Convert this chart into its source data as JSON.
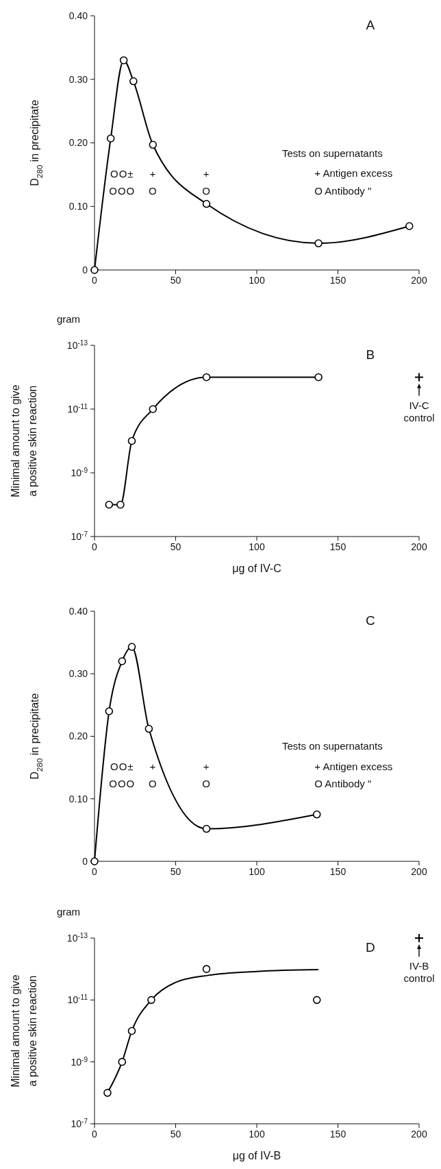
{
  "chart_data": [
    {
      "type": "line",
      "title": "A",
      "ylabel": "D$_{280}$ in precipitate",
      "x": [
        0,
        10,
        18,
        24,
        36,
        69,
        138,
        194
      ],
      "series": [
        {
          "color": "#000000",
          "values": [
            0,
            0.207,
            0.33,
            0.297,
            0.197,
            0.104,
            0.042,
            0.069
          ]
        }
      ],
      "marker": "circle",
      "line_style": "solid",
      "xlim": [
        0,
        200
      ],
      "xticks": [
        0,
        50,
        100,
        150,
        200
      ],
      "ylim": [
        0,
        0.4
      ],
      "yticks": [
        0,
        {
          "value": 0.1,
          "label": "0.10"
        },
        {
          "value": 0.2,
          "label": "0.20"
        },
        {
          "value": 0.3,
          "label": "0.30"
        },
        {
          "value": 0.4,
          "label": "0.40"
        }
      ],
      "annotations": [
        "Tests on supernatants",
        "+ Antigen excess",
        "O Antibody \"",
        "OO±",
        "+",
        "+",
        "OOO",
        "O",
        "O"
      ]
    },
    {
      "type": "line",
      "title": "B",
      "ylabel": "Minimal amount to give a positive skin reaction",
      "xlabel": "μg of IV-C",
      "log": true,
      "x": [
        9,
        16,
        23,
        36,
        69,
        138
      ],
      "series": [
        {
          "color": "#000000",
          "values": [
            1e-08,
            1e-08,
            1e-10,
            1e-11,
            1e-12,
            1e-12
          ]
        },
        {
          "type": "scatter",
          "color": "#000000",
          "marker": "cross",
          "x": [
            200
          ],
          "values": [
            1e-12
          ]
        }
      ],
      "marker": "circle",
      "line_style": "solid",
      "xlim": [
        0,
        200
      ],
      "xticks": [
        0,
        50,
        100,
        150,
        200
      ],
      "ylim": [
        1e-07,
        1e-13
      ],
      "yticks": [
        {
          "value": 1e-13,
          "label": "10$^{-13}$"
        },
        {
          "value": 1e-11,
          "label": "10$^{-11}$"
        },
        {
          "value": 1e-09,
          "label": "10$^{-9}$"
        },
        {
          "value": 1e-07,
          "label": "10$^{-7}$"
        }
      ],
      "annotations": [
        "gram",
        {
          "text": "IV-C control",
          "x": 200,
          "y": 1e-12
        }
      ]
    },
    {
      "type": "line",
      "title": "C",
      "ylabel": "D$_{280}$ in precipitate",
      "x": [
        0,
        9,
        17,
        23,
        33.5,
        69,
        137
      ],
      "series": [
        {
          "color": "#000000",
          "values": [
            0,
            0.24,
            0.32,
            0.343,
            0.212,
            0.052,
            0.075
          ]
        }
      ],
      "marker": "circle",
      "line_style": "solid",
      "xlim": [
        0,
        200
      ],
      "xticks": [
        0,
        50,
        100,
        150,
        200
      ],
      "ylim": [
        0,
        0.4
      ],
      "yticks": [
        0,
        {
          "value": 0.1,
          "label": "0.10"
        },
        {
          "value": 0.2,
          "label": "0.20"
        },
        {
          "value": 0.3,
          "label": "0.30"
        },
        {
          "value": 0.4,
          "label": "0.40"
        }
      ],
      "annotations": [
        "Tests on supernatants",
        "+ Antigen excess",
        "O Antibody \"",
        "OO±",
        "+",
        "+",
        "OOO",
        "O",
        "O"
      ]
    },
    {
      "type": "scatter",
      "title": "D",
      "ylabel": "Minimal amount to give a positive skin reaction",
      "xlabel": "μg of IV-B",
      "log": true,
      "series": [
        {
          "color": "#000000",
          "marker": "circle",
          "x": [
            8,
            17,
            23,
            35,
            69,
            137
          ],
          "values": [
            1e-08,
            1e-09,
            1e-10,
            1e-11,
            1e-12,
            1e-11
          ]
        },
        {
          "type": "line",
          "color": "#000000",
          "marker": "none",
          "x": [
            8,
            17,
            23,
            35,
            50,
            70,
            100,
            138
          ],
          "values": [
            1e-08,
            1e-09,
            1e-10,
            1e-11,
            2.7e-12,
            1.6e-12,
            1.2e-12,
            1.05e-12
          ]
        },
        {
          "type": "scatter",
          "color": "#000000",
          "marker": "cross",
          "x": [
            200
          ],
          "values": [
            1e-13
          ]
        }
      ],
      "line_style": "solid",
      "xlim": [
        0,
        200
      ],
      "xticks": [
        0,
        50,
        100,
        150,
        200
      ],
      "ylim": [
        1e-07,
        1e-13
      ],
      "yticks": [
        {
          "value": 1e-13,
          "label": "10$^{-13}$"
        },
        {
          "value": 1e-11,
          "label": "10$^{-11}$"
        },
        {
          "value": 1e-09,
          "label": "10$^{-9}$"
        },
        {
          "value": 1e-07,
          "label": "10$^{-7}$"
        }
      ],
      "annotations": [
        "gram",
        {
          "text": "IV-B control",
          "x": 200,
          "y": 1e-13
        }
      ]
    }
  ]
}
